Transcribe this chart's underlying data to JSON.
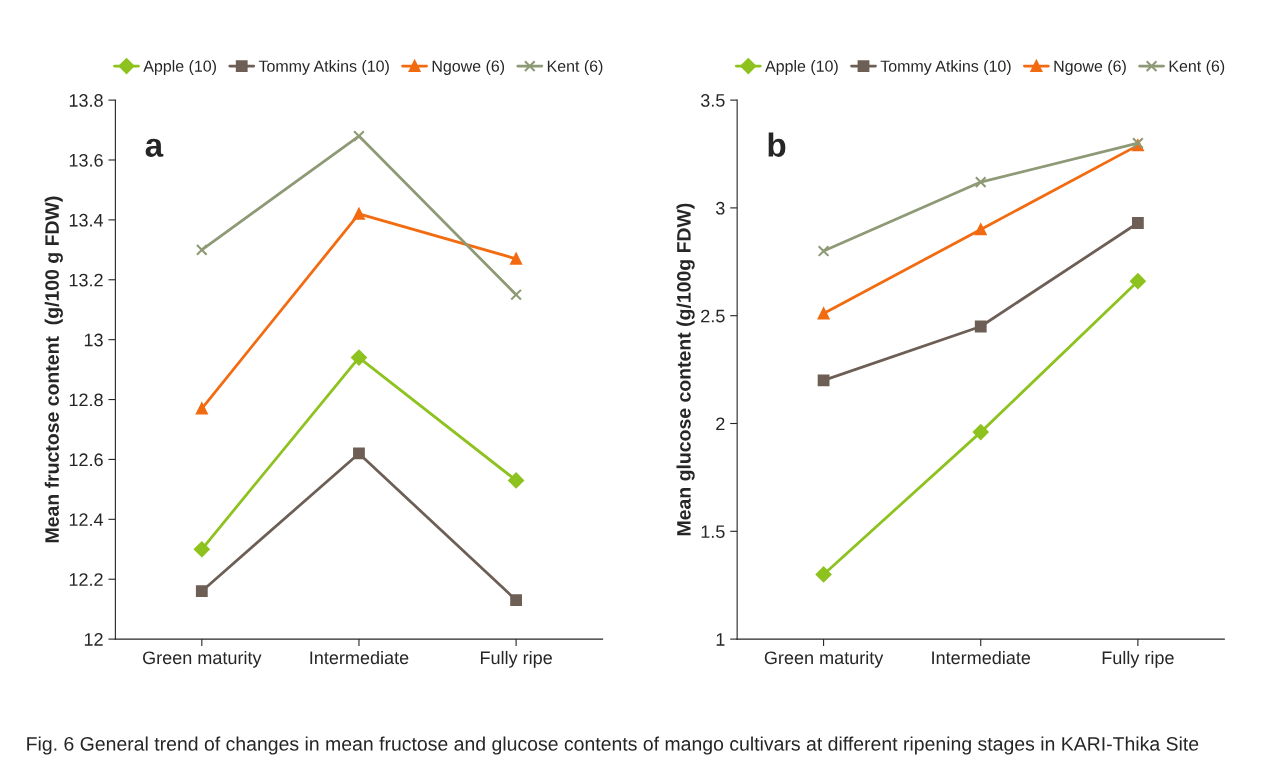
{
  "chart_data": [
    {
      "type": "line",
      "title": "a",
      "ylabel": "Mean fructose content  (g/100 g FDW)",
      "categories": [
        "Green maturity",
        "Intermediate",
        "Fully ripe"
      ],
      "series": [
        {
          "name": "Apple (10)",
          "color": "#8dc21f",
          "marker": "diamond",
          "values": [
            12.3,
            12.94,
            12.53
          ]
        },
        {
          "name": "Tommy Atkins (10)",
          "color": "#6d5f55",
          "marker": "square",
          "values": [
            12.16,
            12.62,
            12.13
          ]
        },
        {
          "name": "Ngowe (6)",
          "color": "#f26b10",
          "marker": "triangle",
          "values": [
            12.77,
            13.42,
            13.27
          ]
        },
        {
          "name": "Kent (6)",
          "color": "#8e9a76",
          "marker": "cross",
          "values": [
            13.3,
            13.68,
            13.15
          ]
        }
      ],
      "ylim": [
        12,
        13.8
      ],
      "yticks": [
        12,
        12.2,
        12.4,
        12.6,
        12.8,
        13,
        13.2,
        13.4,
        13.6,
        13.8
      ],
      "grid": false,
      "legend": "top"
    },
    {
      "type": "line",
      "title": "b",
      "ylabel": "Mean glucose content (g/100g FDW)",
      "categories": [
        "Green maturity",
        "Intermediate",
        "Fully ripe"
      ],
      "series": [
        {
          "name": "Apple (10)",
          "color": "#8dc21f",
          "marker": "diamond",
          "values": [
            1.3,
            1.96,
            2.66
          ]
        },
        {
          "name": "Tommy Atkins (10)",
          "color": "#6d5f55",
          "marker": "square",
          "values": [
            2.2,
            2.45,
            2.93
          ]
        },
        {
          "name": "Ngowe (6)",
          "color": "#f26b10",
          "marker": "triangle",
          "values": [
            2.51,
            2.9,
            3.29
          ]
        },
        {
          "name": "Kent (6)",
          "color": "#8e9a76",
          "marker": "cross",
          "values": [
            2.8,
            3.12,
            3.3
          ]
        }
      ],
      "ylim": [
        1,
        3.5
      ],
      "yticks": [
        1,
        1.5,
        2,
        2.5,
        3,
        3.5
      ],
      "grid": false,
      "legend": "top",
      "annotations": [
        "Fig. 6 General trend of changes in mean fructose and glucose contents of mango cultivars at different ripening stages in KARI-Thika Site"
      ]
    }
  ]
}
